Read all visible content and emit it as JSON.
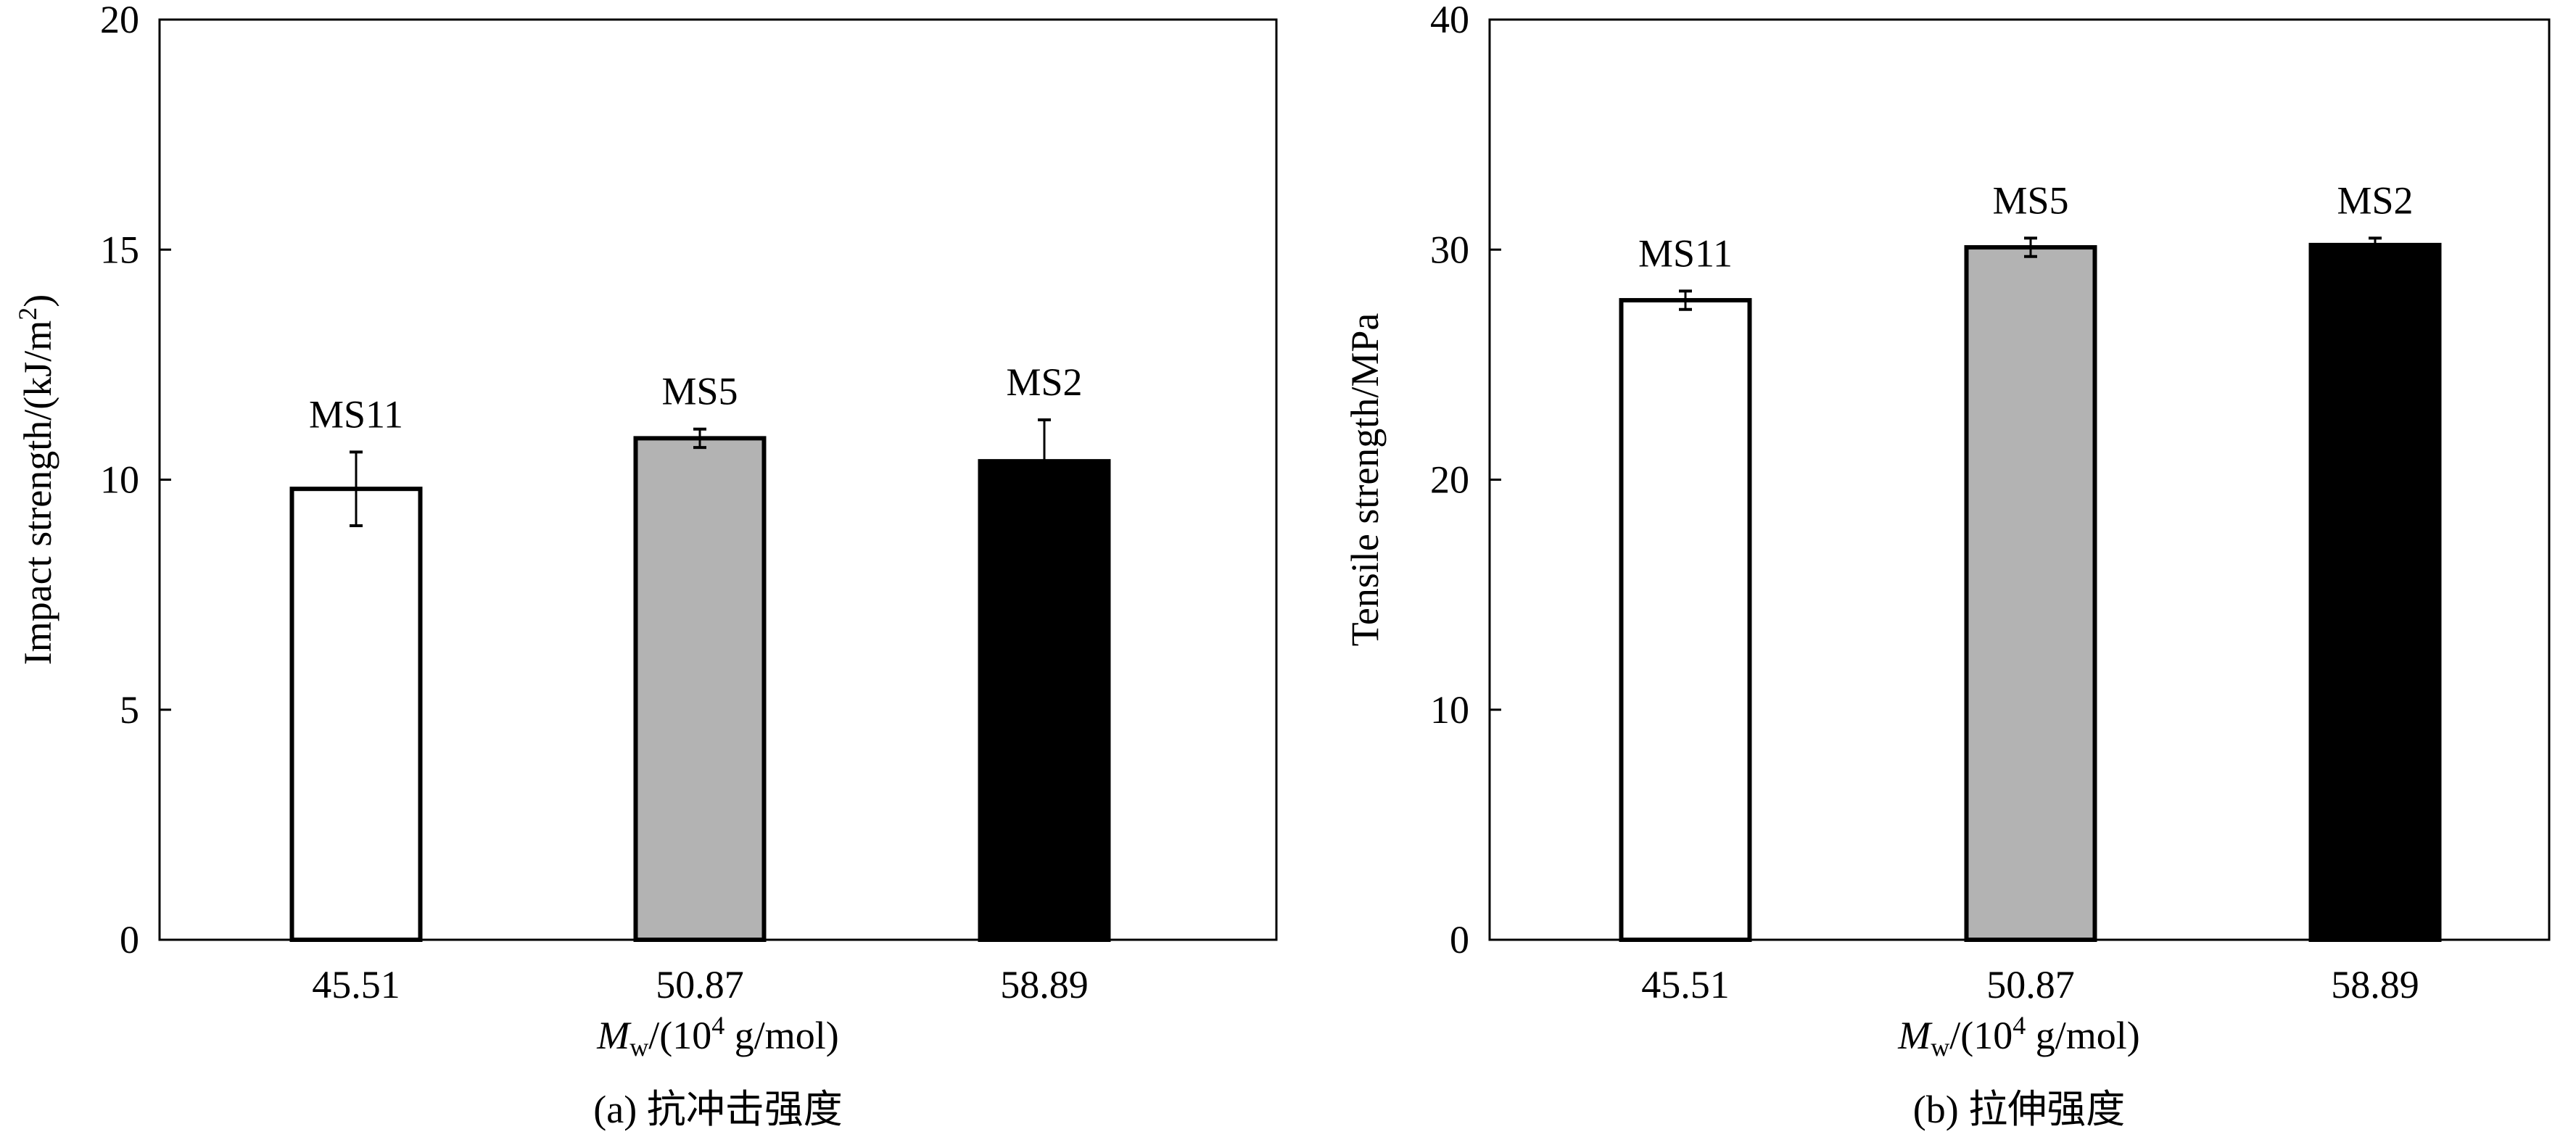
{
  "chart_data": [
    {
      "type": "bar",
      "caption": "(a) 抗冲击强度",
      "title": "",
      "xlabel_main": "M",
      "xlabel_sub": "w",
      "xlabel_rest": "/(10",
      "xlabel_sup": "4",
      "xlabel_end": " g/mol)",
      "ylabel_main": "Impact strength/(kJ/m",
      "ylabel_sup": "2",
      "ylabel_end": ")",
      "ylim": [
        0,
        20
      ],
      "yticks": [
        0,
        5,
        10,
        15,
        20
      ],
      "categories": [
        "45.51",
        "50.87",
        "58.89"
      ],
      "bar_labels": [
        "MS11",
        "MS5",
        "MS2"
      ],
      "values": [
        9.8,
        10.9,
        10.4
      ],
      "errors": [
        0.8,
        0.2,
        0.9
      ],
      "colors": [
        "#ffffff",
        "#b3b3b3",
        "#000000"
      ]
    },
    {
      "type": "bar",
      "caption": "(b) 拉伸强度",
      "title": "",
      "xlabel_main": "M",
      "xlabel_sub": "w",
      "xlabel_rest": "/(10",
      "xlabel_sup": "4",
      "xlabel_end": " g/mol)",
      "ylabel_main": "Tensile strength/MPa",
      "ylabel_sup": "",
      "ylabel_end": "",
      "ylim": [
        0,
        40
      ],
      "yticks": [
        0,
        10,
        20,
        30,
        40
      ],
      "categories": [
        "45.51",
        "50.87",
        "58.89"
      ],
      "bar_labels": [
        "MS11",
        "MS5",
        "MS2"
      ],
      "values": [
        27.8,
        30.1,
        30.2
      ],
      "errors": [
        0.4,
        0.4,
        0.3
      ],
      "colors": [
        "#ffffff",
        "#b3b3b3",
        "#000000"
      ]
    }
  ]
}
